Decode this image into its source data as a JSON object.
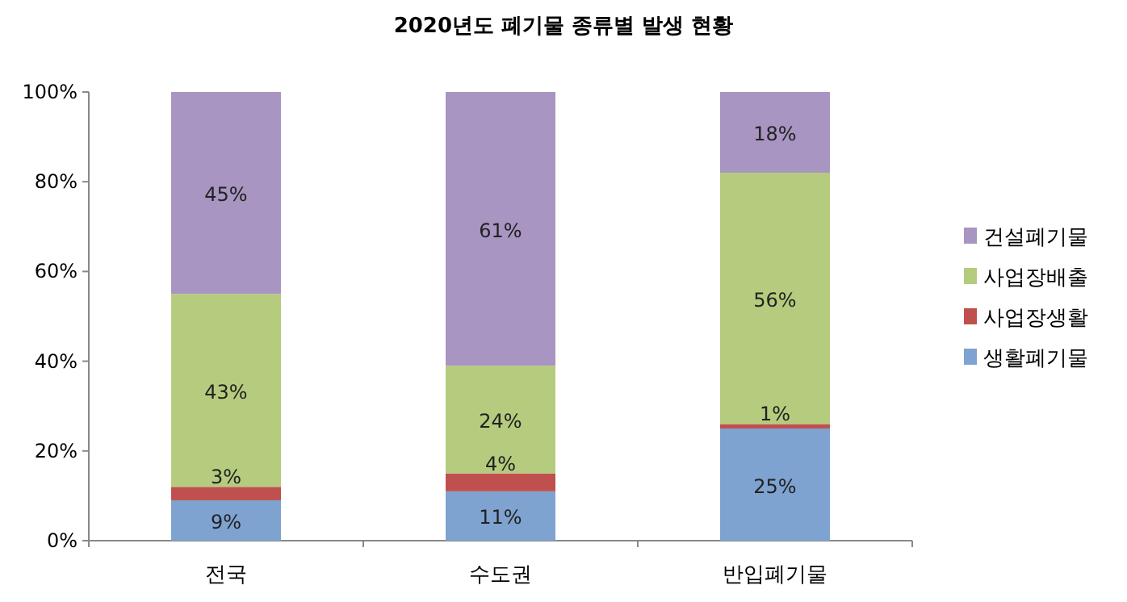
{
  "chart_data": {
    "type": "bar",
    "title": "2020년도  폐기물 종류별  발생 현황",
    "categories": [
      "전국",
      "수도권",
      "반입폐기물"
    ],
    "stacked": true,
    "legend": "right",
    "ylim": [
      0,
      100
    ],
    "yticks": [
      {
        "value": 0,
        "label": "0%"
      },
      {
        "value": 20,
        "label": "20%"
      },
      {
        "value": 40,
        "label": "40%"
      },
      {
        "value": 60,
        "label": "60%"
      },
      {
        "value": 80,
        "label": "80%"
      },
      {
        "value": 100,
        "label": "100%"
      }
    ],
    "series": [
      {
        "name": "생활폐기물",
        "color": "#7fa3d0",
        "values": [
          9,
          11,
          25
        ],
        "value_labels": [
          "9%",
          "11%",
          "25%"
        ]
      },
      {
        "name": "사업장생활",
        "color": "#c0504d",
        "values": [
          3,
          4,
          1
        ],
        "value_labels": [
          "3%",
          "4%",
          "1%"
        ]
      },
      {
        "name": "사업장배출",
        "color": "#b5cc7e",
        "values": [
          43,
          24,
          56
        ],
        "value_labels": [
          "43%",
          "24%",
          "56%"
        ]
      },
      {
        "name": "건설폐기물",
        "color": "#a895c2",
        "values": [
          45,
          61,
          18
        ],
        "value_labels": [
          "45%",
          "61%",
          "18%"
        ]
      }
    ]
  }
}
